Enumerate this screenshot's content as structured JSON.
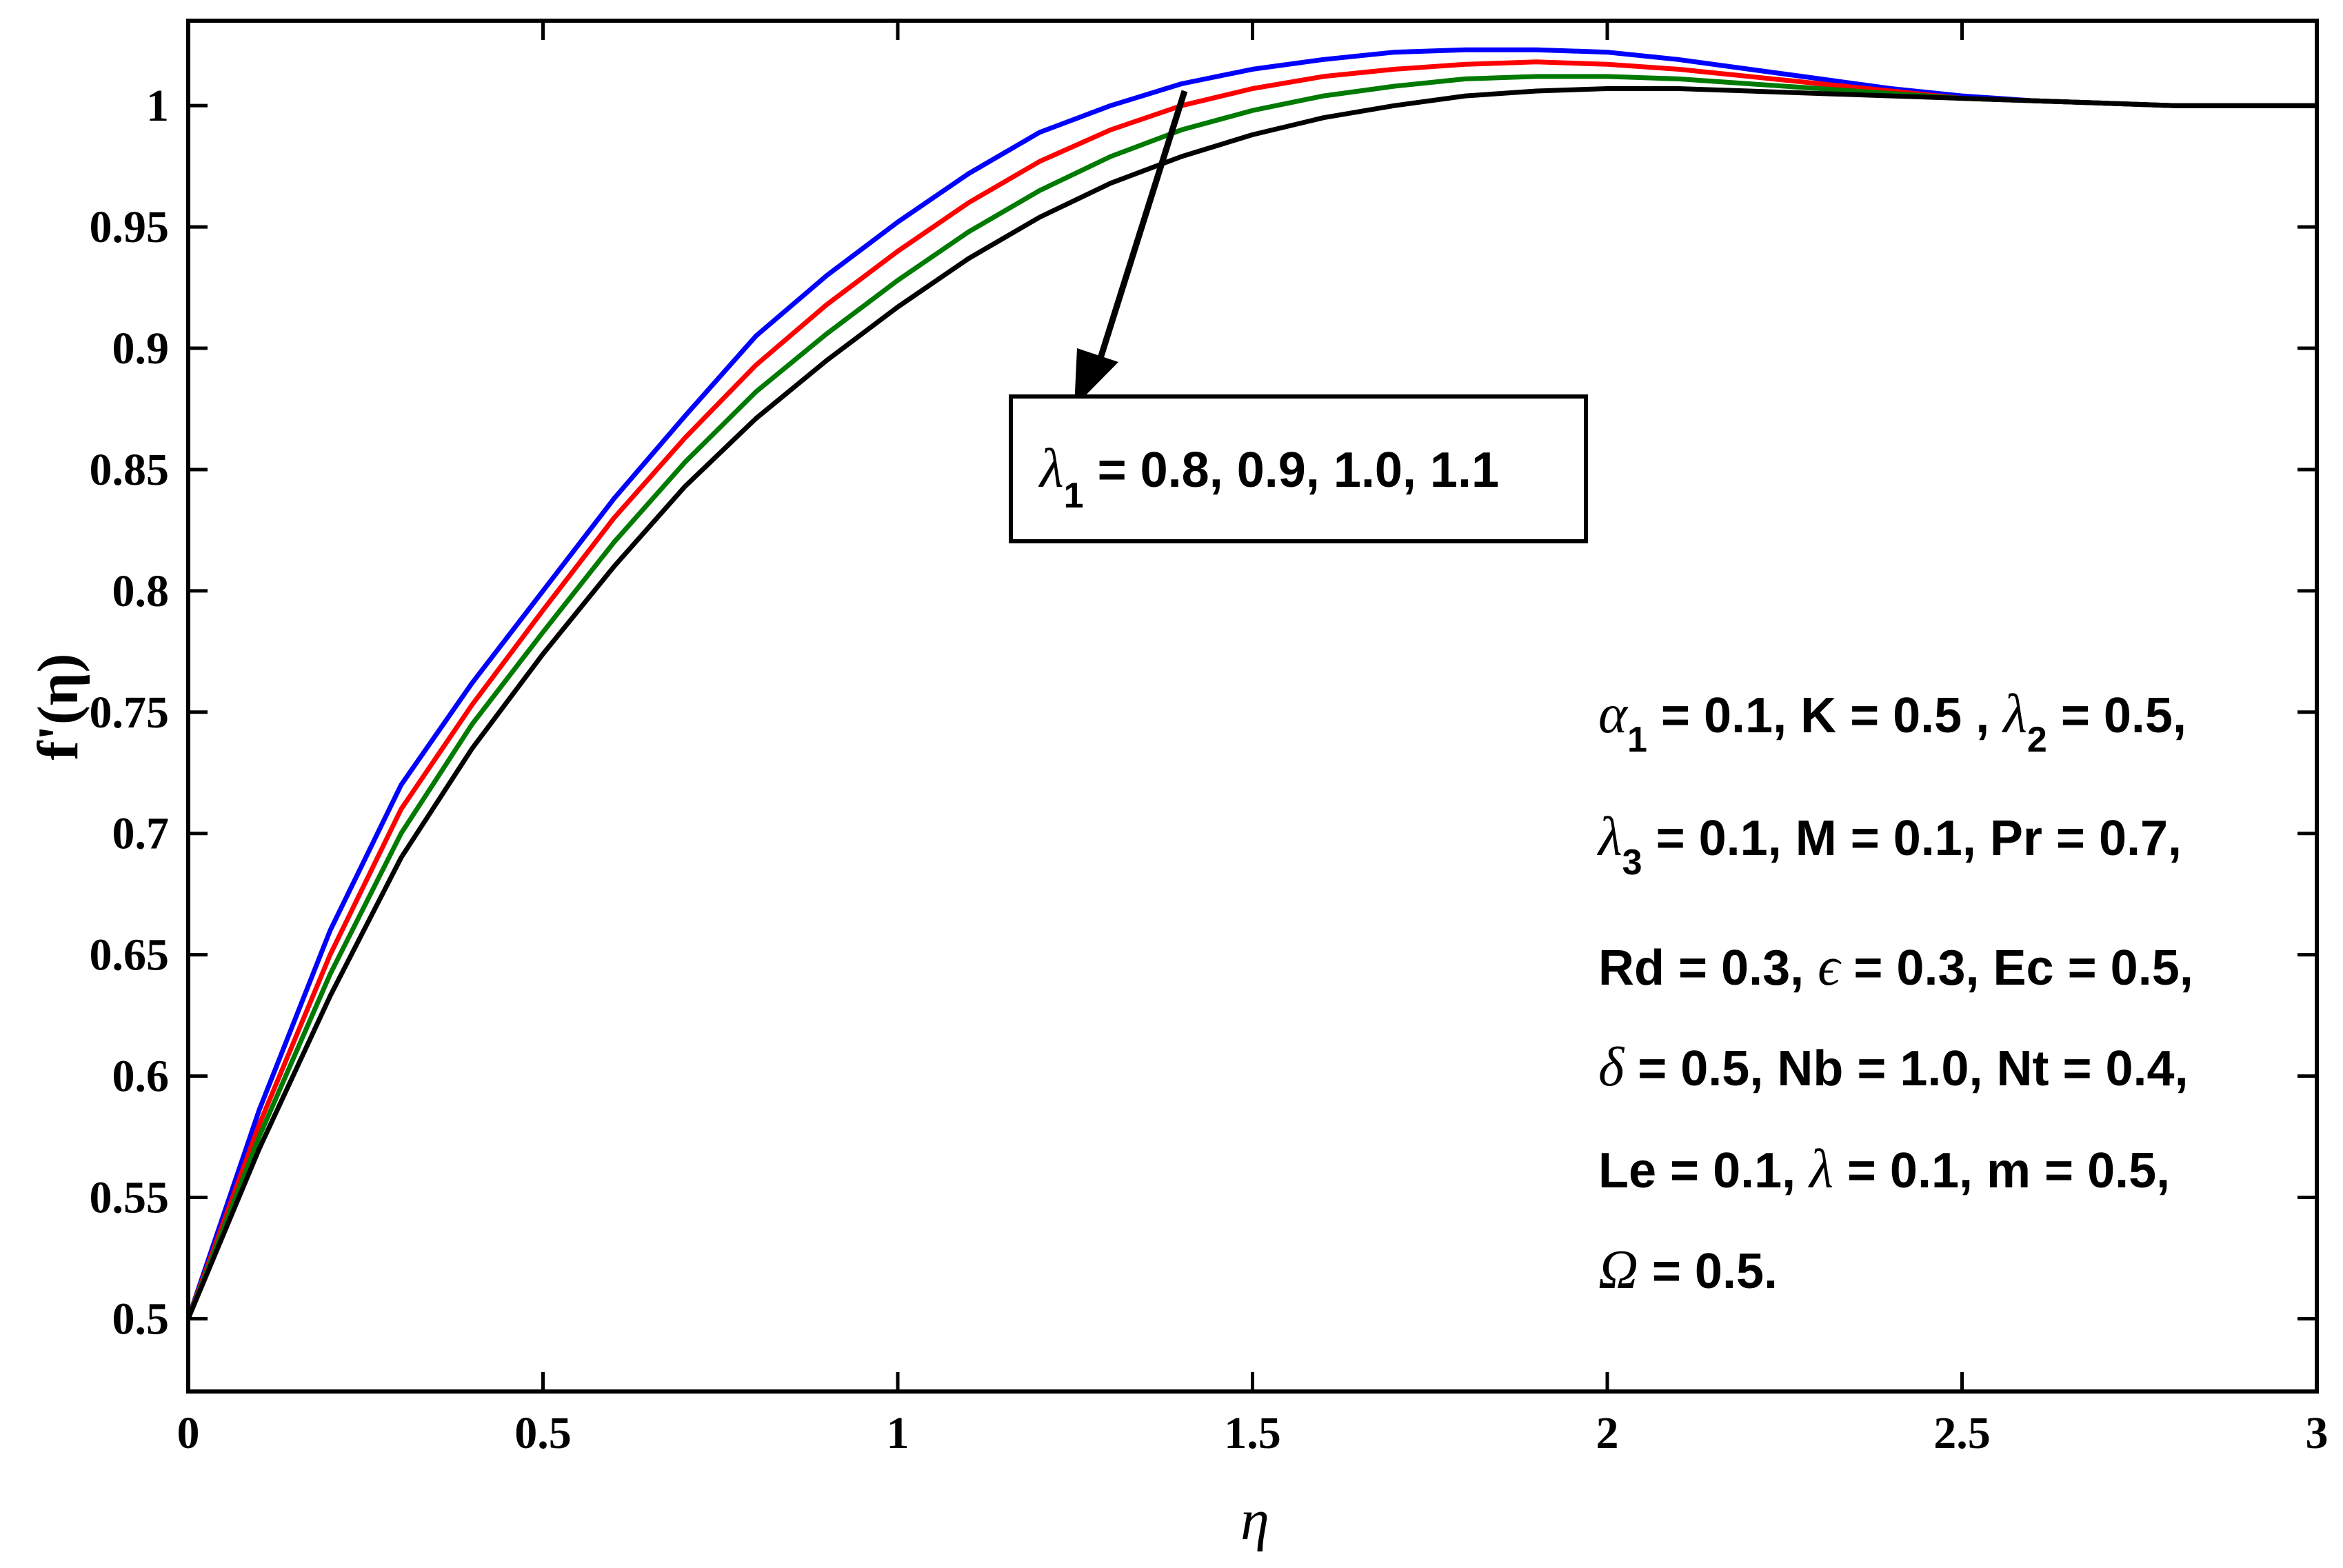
{
  "chart_data": {
    "type": "line",
    "xlabel": "η",
    "ylabel": "f'(η)",
    "xlim": [
      0,
      3
    ],
    "ylim": [
      0.47,
      1.035
    ],
    "xticks": [
      "0",
      "0.5",
      "1",
      "1.5",
      "2",
      "2.5",
      "3"
    ],
    "yticks": [
      "0.5",
      "0.55",
      "0.6",
      "0.65",
      "0.7",
      "0.75",
      "0.8",
      "0.85",
      "0.9",
      "0.95",
      "1"
    ],
    "grid": false,
    "x": [
      0,
      0.1,
      0.2,
      0.3,
      0.4,
      0.5,
      0.6,
      0.7,
      0.8,
      0.9,
      1.0,
      1.1,
      1.2,
      1.3,
      1.4,
      1.5,
      1.6,
      1.7,
      1.8,
      1.9,
      2.0,
      2.1,
      2.2,
      2.3,
      2.4,
      2.5,
      2.6,
      2.7,
      2.8,
      2.9,
      3.0
    ],
    "series": [
      {
        "color": "#0000ff",
        "values": [
          0.5,
          0.586,
          0.66,
          0.72,
          0.762,
          0.8,
          0.838,
          0.872,
          0.905,
          0.93,
          0.952,
          0.972,
          0.989,
          1.0,
          1.009,
          1.015,
          1.019,
          1.022,
          1.023,
          1.023,
          1.022,
          1.019,
          1.015,
          1.011,
          1.007,
          1.004,
          1.002,
          1.001,
          1.0,
          1.0,
          1.0
        ]
      },
      {
        "color": "#ff0000",
        "values": [
          0.5,
          0.58,
          0.65,
          0.71,
          0.753,
          0.792,
          0.83,
          0.863,
          0.893,
          0.918,
          0.94,
          0.96,
          0.977,
          0.99,
          1.0,
          1.007,
          1.012,
          1.015,
          1.017,
          1.018,
          1.017,
          1.015,
          1.012,
          1.009,
          1.006,
          1.003,
          1.002,
          1.001,
          1.0,
          1.0,
          1.0
        ]
      },
      {
        "color": "#007a00",
        "values": [
          0.5,
          0.575,
          0.642,
          0.7,
          0.745,
          0.783,
          0.82,
          0.853,
          0.882,
          0.906,
          0.928,
          0.948,
          0.965,
          0.979,
          0.99,
          0.998,
          1.004,
          1.008,
          1.011,
          1.012,
          1.012,
          1.011,
          1.009,
          1.007,
          1.005,
          1.003,
          1.002,
          1.001,
          1.0,
          1.0,
          1.0
        ]
      },
      {
        "color": "#000000",
        "values": [
          0.5,
          0.57,
          0.633,
          0.69,
          0.735,
          0.774,
          0.81,
          0.843,
          0.871,
          0.895,
          0.917,
          0.937,
          0.954,
          0.968,
          0.979,
          0.988,
          0.995,
          1.0,
          1.004,
          1.006,
          1.007,
          1.007,
          1.006,
          1.005,
          1.004,
          1.003,
          1.002,
          1.001,
          1.0,
          1.0,
          1.0
        ]
      }
    ],
    "annotations": {
      "lambda1_box": "λ1 = 0.8, 0.9, 1.0, 1.1",
      "params": [
        "α1 = 0.1, K = 0.5 , λ2 = 0.5,",
        "λ3 = 0.1, M = 0.1, Pr = 0.7,",
        "Rd = 0.3, ϵ = 0.3, Ec = 0.5,",
        "δ = 0.5, Nb = 1.0, Nt = 0.4,",
        "Le = 0.1, λ = 0.1, m = 0.5,",
        "Ω = 0.5."
      ]
    }
  },
  "text": {
    "xlabel": "η",
    "ylabel": "f'(η)",
    "box_sym": "λ",
    "box_sub": "1",
    "box_rest": " = 0.8, 0.9, 1.0, 1.1",
    "p1_sym": "α",
    "p1_sub": "1",
    "p1_a": " = 0.1, K = 0.5 , ",
    "p1_sym2": "λ",
    "p1_sub2": "2",
    "p1_b": " = 0.5,",
    "p2_sym": "λ",
    "p2_sub": "3",
    "p2_a": " = 0.1, M = 0.1, Pr = 0.7,",
    "p3_a": "Rd = 0.3, ",
    "p3_sym": "ϵ",
    "p3_b": " = 0.3, Ec = 0.5,",
    "p4_sym": "δ",
    "p4_a": " = 0.5, Nb = 1.0, Nt = 0.4,",
    "p5_a": "Le = 0.1, ",
    "p5_sym": "λ",
    "p5_b": " = 0.1, m = 0.5,",
    "p6_sym": "Ω",
    "p6_a": " = 0.5."
  }
}
